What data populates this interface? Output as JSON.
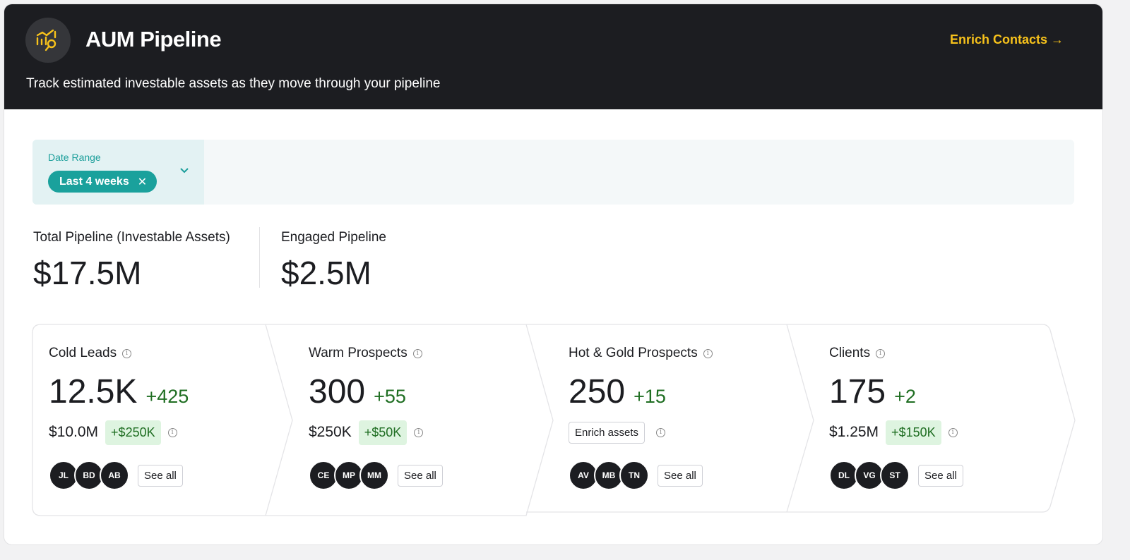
{
  "header": {
    "title": "AUM Pipeline",
    "subtitle": "Track estimated investable assets as they move through your pipeline",
    "enrich_link": "Enrich Contacts →"
  },
  "filters": {
    "date_range_label": "Date Range",
    "date_range_value": "Last 4 weeks"
  },
  "metrics": [
    {
      "label": "Total Pipeline (Investable Assets)",
      "value": "$17.5M"
    },
    {
      "label": "Engaged Pipeline",
      "value": "$2.5M"
    }
  ],
  "stages": [
    {
      "name": "Cold Leads",
      "count": "12.5K",
      "delta": "+425",
      "assets": "$10.0M",
      "assets_delta": "+$250K",
      "people": [
        "JL",
        "BD",
        "AB"
      ],
      "see_all": "See all"
    },
    {
      "name": "Warm Prospects",
      "count": "300",
      "delta": "+55",
      "assets": "$250K",
      "assets_delta": "+$50K",
      "people": [
        "CE",
        "MP",
        "MM"
      ],
      "see_all": "See all"
    },
    {
      "name": "Hot & Gold Prospects",
      "count": "250",
      "delta": "+15",
      "enrich_button": "Enrich assets",
      "people": [
        "AV",
        "MB",
        "TN"
      ],
      "see_all": "See all"
    },
    {
      "name": "Clients",
      "count": "175",
      "delta": "+2",
      "assets": "$1.25M",
      "assets_delta": "+$150K",
      "people": [
        "DL",
        "VG",
        "ST"
      ],
      "see_all": "See all"
    }
  ]
}
